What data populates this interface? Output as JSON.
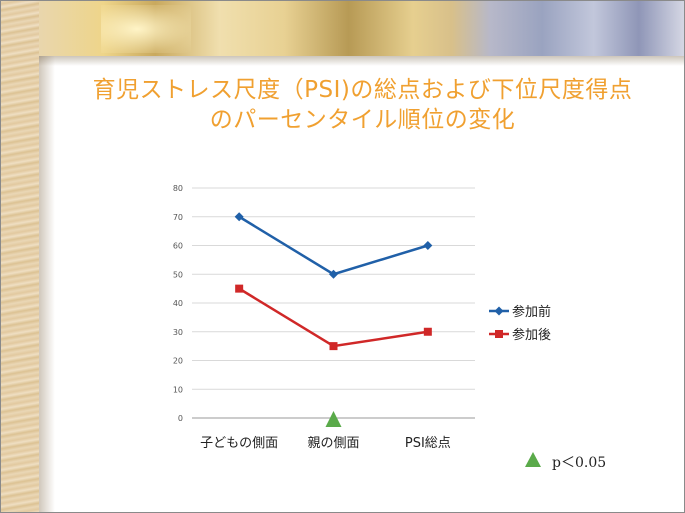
{
  "slide": {
    "title_line1": "育児ストレス尺度（PSI)の総点および下位尺度得点",
    "title_line2": "のパーセンタイル順位の変化",
    "note": "p＜0.05",
    "note_color": "#5aaa4a"
  },
  "chart_data": {
    "type": "line",
    "title": "育児ストレス尺度（PSI)の総点および下位尺度得点のパーセンタイル順位の変化",
    "categories": [
      "子どもの側面",
      "親の側面",
      "PSI総点"
    ],
    "ylim": [
      0,
      80
    ],
    "yticks": [
      0,
      10,
      20,
      30,
      40,
      50,
      60,
      70,
      80
    ],
    "grid": true,
    "legend_position": "right",
    "series": [
      {
        "name": "参加前",
        "values": [
          70,
          50,
          60
        ],
        "color": "#2060a8",
        "marker": "diamond"
      },
      {
        "name": "参加後",
        "values": [
          45,
          25,
          30
        ],
        "color": "#d02828",
        "marker": "square"
      }
    ],
    "annotations": [
      {
        "category": "親の側面",
        "symbol": "triangle",
        "color": "#5aaa4a",
        "meaning": "p＜0.05"
      }
    ]
  }
}
